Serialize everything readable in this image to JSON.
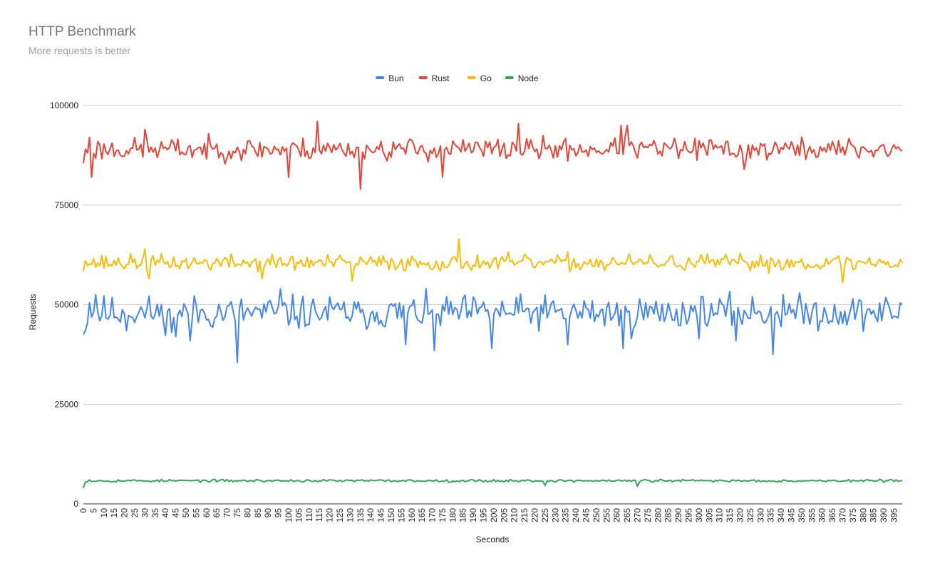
{
  "chart_data": {
    "type": "line",
    "title": "HTTP Benchmark",
    "subtitle": "More requests is better",
    "xlabel": "Seconds",
    "ylabel": "Requests",
    "ylim": [
      0,
      100000
    ],
    "xlim": [
      0,
      399
    ],
    "yticks": [
      "0",
      "25000",
      "50000",
      "75000",
      "100000"
    ],
    "xticks_step": 5,
    "grid": true,
    "legend_position": "top",
    "series": [
      {
        "name": "Bun",
        "color": "#4285f4",
        "base": 48000,
        "amp": 4500,
        "seed": 11,
        "points": [
          [
            0,
            42500
          ],
          [
            1,
            43500
          ],
          [
            3,
            50500
          ],
          [
            6,
            52500
          ],
          [
            21,
            43500
          ],
          [
            38,
            50000
          ],
          [
            43,
            43000
          ],
          [
            45,
            42000
          ],
          [
            52,
            41000
          ],
          [
            75,
            35500
          ],
          [
            96,
            54000
          ],
          [
            110,
            45000
          ],
          [
            135,
            48000
          ],
          [
            157,
            40000
          ],
          [
            171,
            38500
          ],
          [
            199,
            39000
          ],
          [
            236,
            40000
          ],
          [
            263,
            39000
          ],
          [
            267,
            41500
          ],
          [
            300,
            41500
          ],
          [
            318,
            41000
          ],
          [
            336,
            37500
          ],
          [
            341,
            52500
          ],
          [
            399,
            50000
          ]
        ]
      },
      {
        "name": "Rust",
        "color": "#ea4335",
        "base": 89000,
        "amp": 3000,
        "seed": 23,
        "points": [
          [
            0,
            85500
          ],
          [
            1,
            89000
          ],
          [
            3,
            92000
          ],
          [
            4,
            82000
          ],
          [
            30,
            94000
          ],
          [
            100,
            82000
          ],
          [
            114,
            96000
          ],
          [
            134,
            89500
          ],
          [
            135,
            79000
          ],
          [
            175,
            82000
          ],
          [
            212,
            95500
          ],
          [
            262,
            95000
          ],
          [
            265,
            95000
          ],
          [
            322,
            84000
          ],
          [
            399,
            88500
          ]
        ]
      },
      {
        "name": "Go",
        "color": "#fbbc04",
        "base": 60500,
        "amp": 2200,
        "seed": 37,
        "points": [
          [
            0,
            58500
          ],
          [
            1,
            61000
          ],
          [
            30,
            64000
          ],
          [
            32,
            56500
          ],
          [
            87,
            56500
          ],
          [
            131,
            56000
          ],
          [
            183,
            66500
          ],
          [
            370,
            55500
          ],
          [
            399,
            60500
          ]
        ]
      },
      {
        "name": "Node",
        "color": "#34a853",
        "base": 5800,
        "amp": 350,
        "seed": 53,
        "points": [
          [
            0,
            4000
          ],
          [
            1,
            5500
          ],
          [
            3,
            6000
          ],
          [
            225,
            4600
          ],
          [
            270,
            4400
          ],
          [
            399,
            5800
          ]
        ]
      }
    ]
  }
}
